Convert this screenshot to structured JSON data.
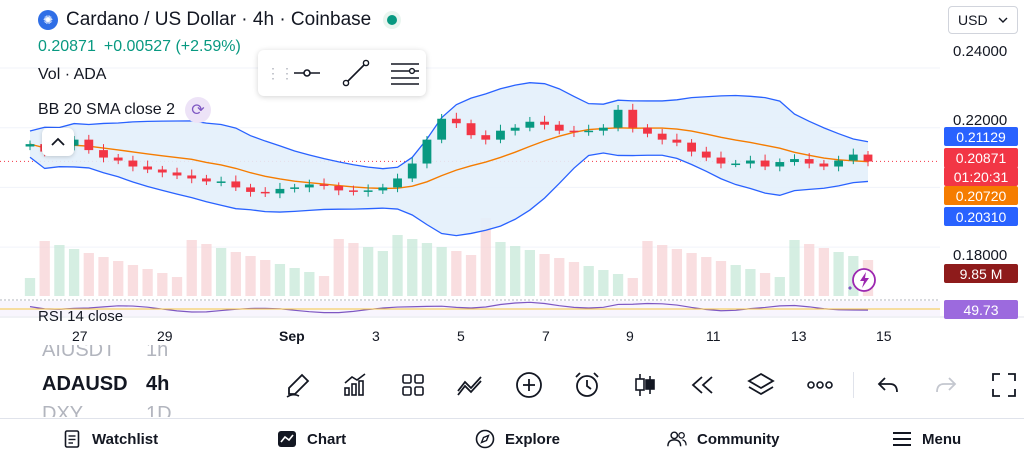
{
  "header": {
    "title": "Cardano / US Dollar · 4h · Coinbase",
    "price": "0.20871",
    "change": "+0.00527 (+2.59%)",
    "volume_label": "Vol · ADA",
    "indicator_label": "BB 20 SMA close 2",
    "currency": "USD"
  },
  "price_axis": {
    "labels": [
      "0.24000",
      "0.22000",
      "0.18000"
    ],
    "badges": [
      {
        "text": "0.21129",
        "color": "#2962ff"
      },
      {
        "text": "0.20871",
        "color": "#f23645"
      },
      {
        "text": "01:20:31",
        "color": "#f23645"
      },
      {
        "text": "0.20720",
        "color": "#f57c00"
      },
      {
        "text": "0.20310",
        "color": "#2962ff"
      },
      {
        "text": "9.85 M",
        "color": "#8e1b1b"
      },
      {
        "text": "49.73",
        "color": "#9c6ade"
      }
    ]
  },
  "time_axis": {
    "labels": [
      "27",
      "29",
      "Sep",
      "3",
      "5",
      "7",
      "9",
      "11",
      "13",
      "15"
    ]
  },
  "rsi": {
    "label": "RSI 14 close"
  },
  "chart_data": {
    "type": "candlestick",
    "series_name": "ADAUSD",
    "interval": "4h",
    "ylim": [
      0.176,
      0.244
    ],
    "x_ticks": [
      "27",
      "29",
      "Sep",
      "3",
      "5",
      "7",
      "9",
      "11",
      "13",
      "15"
    ],
    "approx_closes": [
      0.2145,
      0.212,
      0.214,
      0.216,
      0.2125,
      0.21,
      0.209,
      0.207,
      0.206,
      0.205,
      0.204,
      0.203,
      0.202,
      0.202,
      0.2,
      0.1985,
      0.198,
      0.1995,
      0.2,
      0.201,
      0.2005,
      0.199,
      0.1985,
      0.199,
      0.2,
      0.203,
      0.208,
      0.216,
      0.223,
      0.2215,
      0.2175,
      0.216,
      0.219,
      0.22,
      0.222,
      0.221,
      0.219,
      0.2185,
      0.219,
      0.22,
      0.226,
      0.22,
      0.218,
      0.216,
      0.215,
      0.212,
      0.21,
      0.208,
      0.208,
      0.209,
      0.207,
      0.2085,
      0.2095,
      0.208,
      0.207,
      0.209,
      0.211,
      0.2087
    ],
    "last_price": 0.20871,
    "bollinger": {
      "upper": 0.21129,
      "basis": 0.2072,
      "lower": 0.2031
    },
    "volume_last": "9.85 M",
    "rsi_last": 49.73
  },
  "symbol_picker": {
    "above": "AIUSDT",
    "current": "ADAUSD",
    "below": "DXY",
    "interval_above": "1h",
    "interval_current": "4h",
    "interval_below": "1D"
  },
  "bottom_nav": {
    "watchlist": "Watchlist",
    "chart": "Chart",
    "explore": "Explore",
    "community": "Community",
    "menu": "Menu"
  }
}
